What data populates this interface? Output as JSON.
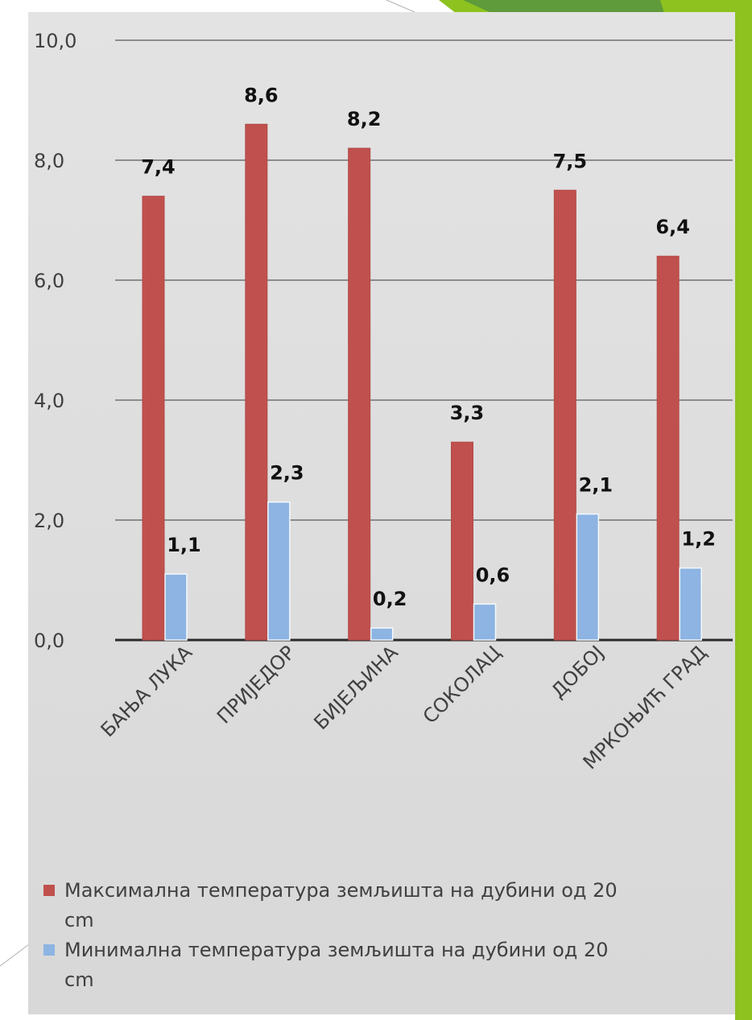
{
  "colors": {
    "max_series": "#c0504d",
    "min_series": "#8db4e2",
    "accent_green": "#8dc21f",
    "accent_green_dark": "#5f9b3a"
  },
  "chart_data": {
    "type": "bar",
    "categories": [
      "БАЊА ЛУКА",
      "ПРИЈЕДОР",
      "БИЈЕЉИНА",
      "СОКОЛАЦ",
      "ДОБОЈ",
      "МРКОЊИЋ ГРАД"
    ],
    "series": [
      {
        "name": "Максимална температура земљишта на дубини од 20 cm",
        "values": [
          7.4,
          8.6,
          8.2,
          3.3,
          7.5,
          6.4
        ],
        "labels": [
          "7,4",
          "8,6",
          "8,2",
          "3,3",
          "7,5",
          "6,4"
        ]
      },
      {
        "name": "Минимална температура земљишта на дубини од 20 cm",
        "values": [
          1.1,
          2.3,
          0.2,
          0.6,
          2.1,
          1.2
        ],
        "labels": [
          "1,1",
          "2,3",
          "0,2",
          "0,6",
          "2,1",
          "1,2"
        ]
      }
    ],
    "ylim": [
      0,
      10
    ],
    "yticks": [
      "0,0",
      "2,0",
      "4,0",
      "6,0",
      "8,0",
      "10,0"
    ],
    "grid": true,
    "legend": "bottom"
  },
  "legend": {
    "items": [
      {
        "line1": "Максимална температура земљишта на дубини од 20",
        "line2": "cm"
      },
      {
        "line1": "Минимална температура земљишта на дубини од 20",
        "line2": "cm"
      }
    ]
  }
}
